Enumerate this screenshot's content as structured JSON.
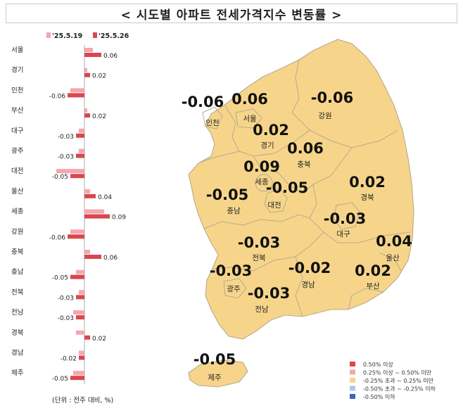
{
  "title": "< 시도별 아파트 전세가격지수 변동률 >",
  "unit_note": "(단위 : 전주 대비, %)",
  "chart_data": {
    "type": "bar",
    "orientation": "horizontal",
    "categories": [
      "서울",
      "경기",
      "인천",
      "부산",
      "대구",
      "광주",
      "대전",
      "울산",
      "세종",
      "강원",
      "충북",
      "충남",
      "전북",
      "전남",
      "경북",
      "경남",
      "제주"
    ],
    "series": [
      {
        "name": "'25.5.19",
        "color": "#f4a6ae",
        "values": [
          0.03,
          0.01,
          -0.05,
          0.01,
          -0.02,
          -0.02,
          -0.1,
          0.02,
          0.07,
          -0.05,
          0.02,
          -0.03,
          -0.02,
          -0.04,
          -0.03,
          -0.02,
          -0.04
        ]
      },
      {
        "name": "'25.5.26",
        "color": "#d9474f",
        "values": [
          0.06,
          0.02,
          -0.06,
          0.02,
          -0.03,
          -0.03,
          -0.05,
          0.04,
          0.09,
          -0.06,
          0.06,
          -0.05,
          -0.03,
          -0.03,
          0.02,
          -0.02,
          -0.05
        ]
      }
    ],
    "value_labels": [
      "0.06",
      "0.02",
      "-0.06",
      "0.02",
      "-0.03",
      "-0.03",
      "-0.05",
      "0.04",
      "0.09",
      "-0.06",
      "0.06",
      "-0.05",
      "-0.03",
      "-0.03",
      "0.02",
      "-0.02",
      "-0.05"
    ]
  },
  "map": {
    "regions": [
      {
        "name": "서울",
        "value": "0.06",
        "fill": "#f6d58b"
      },
      {
        "name": "인천",
        "value": "-0.06",
        "fill": "#f6d58b"
      },
      {
        "name": "경기",
        "value": "0.02",
        "fill": "#f6d58b"
      },
      {
        "name": "강원",
        "value": "-0.06",
        "fill": "#f6d58b"
      },
      {
        "name": "충북",
        "value": "0.06",
        "fill": "#f6d58b"
      },
      {
        "name": "세종",
        "value": "0.09",
        "fill": "#f6d58b"
      },
      {
        "name": "충남",
        "value": "-0.05",
        "fill": "#f6d58b"
      },
      {
        "name": "대전",
        "value": "-0.05",
        "fill": "#f6d58b"
      },
      {
        "name": "경북",
        "value": "0.02",
        "fill": "#f6d58b"
      },
      {
        "name": "대구",
        "value": "-0.03",
        "fill": "#f6d58b"
      },
      {
        "name": "전북",
        "value": "-0.03",
        "fill": "#f6d58b"
      },
      {
        "name": "울산",
        "value": "0.04",
        "fill": "#f6d58b"
      },
      {
        "name": "광주",
        "value": "-0.03",
        "fill": "#f6d58b"
      },
      {
        "name": "전남",
        "value": "-0.03",
        "fill": "#f6d58b"
      },
      {
        "name": "경남",
        "value": "-0.02",
        "fill": "#f6d58b"
      },
      {
        "name": "부산",
        "value": "0.02",
        "fill": "#f6d58b"
      },
      {
        "name": "제주",
        "value": "-0.05",
        "fill": "#f6d58b"
      }
    ],
    "legend": [
      {
        "label": "0.50% 이상",
        "color": "#d9474f"
      },
      {
        "label": "0.25% 이상 ~ 0.50% 미만",
        "color": "#f4a6ae"
      },
      {
        "label": "-0.25% 초과 ~ 0.25% 미만",
        "color": "#f6d58b"
      },
      {
        "label": "-0.50% 초과 ~ -0.25% 이하",
        "color": "#aec8ec"
      },
      {
        "label": "-0.50% 이하",
        "color": "#3b66b8"
      }
    ]
  }
}
